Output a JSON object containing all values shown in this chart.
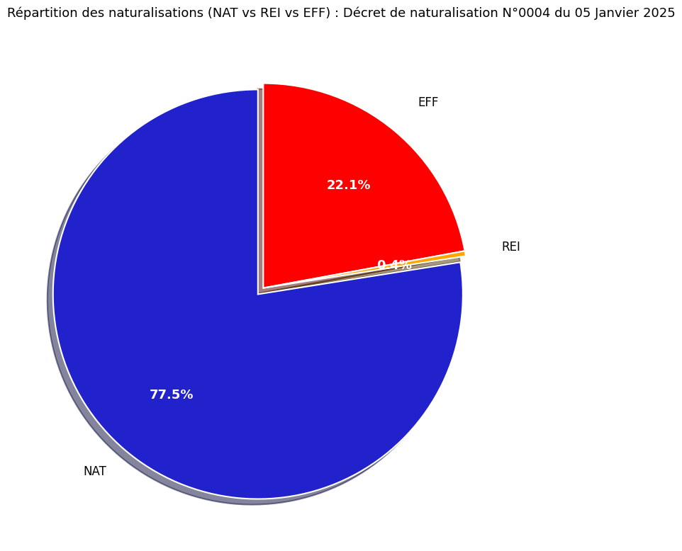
{
  "title": "Répartition des naturalisations (NAT vs REI vs EFF) : Décret de naturalisation N°0004 du 05 Janvier 2025",
  "labels": [
    "EFF",
    "REI",
    "NAT"
  ],
  "values": [
    22.1,
    0.4,
    77.5
  ],
  "colors": [
    "#ff0000",
    "#ffa500",
    "#2222cc"
  ],
  "explode": [
    0.0,
    0.0,
    0.04
  ],
  "shadow": true,
  "autopct_colors": [
    "white",
    "white",
    "white"
  ],
  "label_fontsize": 12,
  "pct_fontsize": 13,
  "title_fontsize": 13,
  "startangle": 90,
  "background_color": "#ffffff"
}
